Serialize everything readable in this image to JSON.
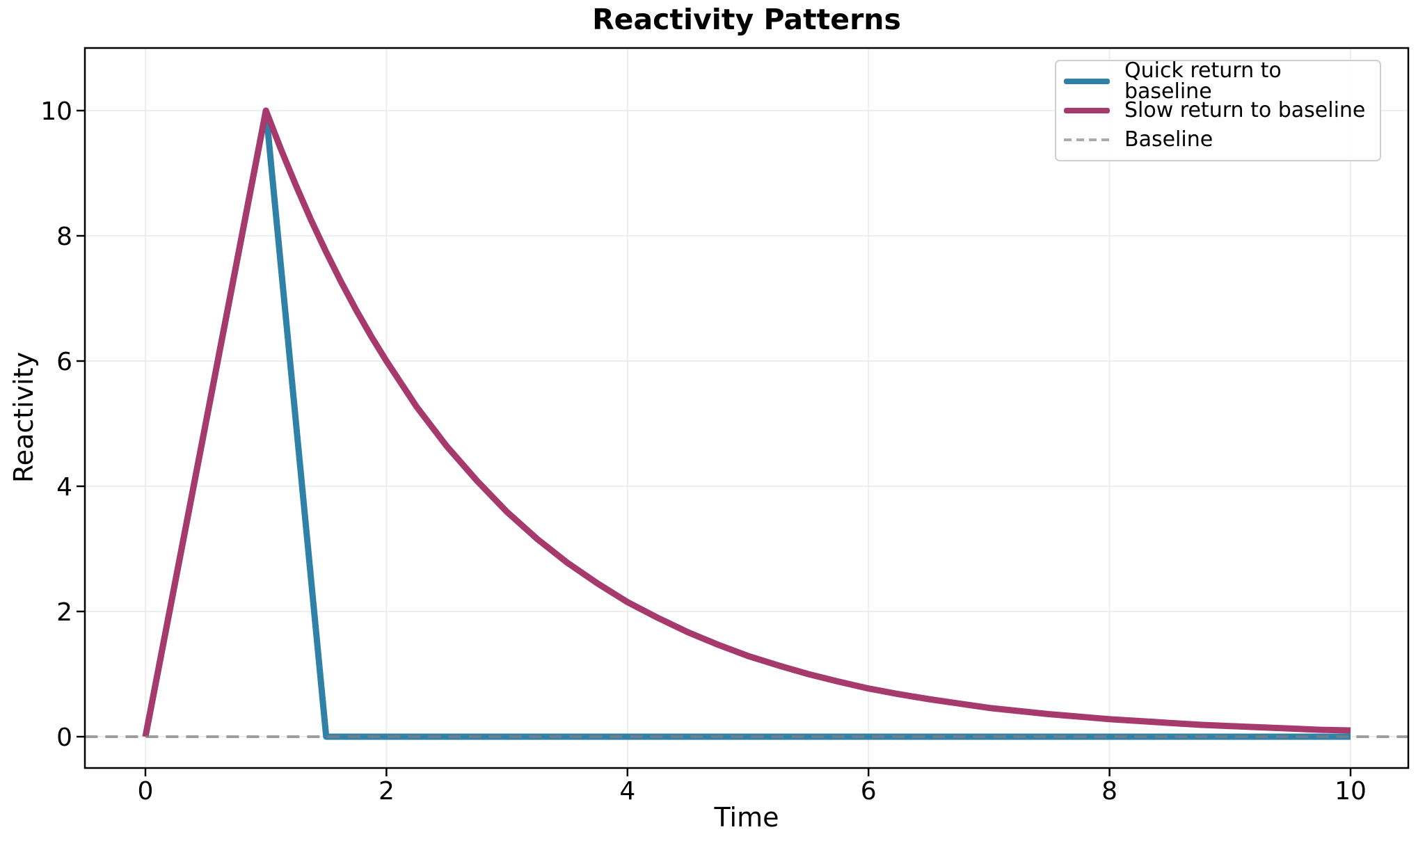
{
  "chart": {
    "title": "Reactivity Patterns",
    "xlabel": "Time",
    "ylabel": "Reactivity"
  },
  "legend": {
    "items": [
      {
        "label": "Quick return to baseline",
        "color": "#2f81a8",
        "dash": "solid"
      },
      {
        "label": "Slow return to baseline",
        "color": "#a63a6d",
        "dash": "solid"
      },
      {
        "label": "Baseline",
        "color": "#ababab",
        "dash": "dashed"
      }
    ]
  },
  "chart_data": {
    "type": "line",
    "title": "Reactivity Patterns",
    "xlabel": "Time",
    "ylabel": "Reactivity",
    "xlim": [
      -0.5,
      10.5
    ],
    "ylim": [
      -0.5,
      11
    ],
    "xticks": [
      0,
      2,
      4,
      6,
      8,
      10
    ],
    "yticks": [
      0,
      2,
      4,
      6,
      8,
      10
    ],
    "grid": true,
    "grid_color": "#ececec",
    "legend_position": "upper right",
    "series": [
      {
        "name": "Quick return to baseline",
        "color": "#2f81a8",
        "style": "solid",
        "width": 9,
        "points": [
          [
            0,
            0
          ],
          [
            1,
            10
          ],
          [
            1.5,
            0
          ],
          [
            10,
            0
          ]
        ]
      },
      {
        "name": "Slow return to baseline",
        "color": "#a63a6d",
        "style": "solid",
        "width": 9,
        "points": [
          [
            0,
            0
          ],
          [
            1,
            10
          ],
          [
            1.125,
            9.38
          ],
          [
            1.25,
            8.8
          ],
          [
            1.375,
            8.25
          ],
          [
            1.5,
            7.74
          ],
          [
            1.625,
            7.26
          ],
          [
            1.75,
            6.81
          ],
          [
            1.875,
            6.39
          ],
          [
            2,
            6.0
          ],
          [
            2.25,
            5.27
          ],
          [
            2.5,
            4.64
          ],
          [
            2.75,
            4.09
          ],
          [
            3,
            3.59
          ],
          [
            3.25,
            3.16
          ],
          [
            3.5,
            2.78
          ],
          [
            3.75,
            2.45
          ],
          [
            4,
            2.15
          ],
          [
            4.25,
            1.9
          ],
          [
            4.5,
            1.67
          ],
          [
            4.75,
            1.47
          ],
          [
            5,
            1.29
          ],
          [
            5.25,
            1.14
          ],
          [
            5.5,
            1.0
          ],
          [
            5.75,
            0.88
          ],
          [
            6,
            0.77
          ],
          [
            6.25,
            0.68
          ],
          [
            6.5,
            0.6
          ],
          [
            6.75,
            0.53
          ],
          [
            7,
            0.46
          ],
          [
            7.25,
            0.41
          ],
          [
            7.5,
            0.36
          ],
          [
            7.75,
            0.32
          ],
          [
            8,
            0.28
          ],
          [
            8.25,
            0.25
          ],
          [
            8.5,
            0.22
          ],
          [
            8.75,
            0.19
          ],
          [
            9,
            0.17
          ],
          [
            9.25,
            0.15
          ],
          [
            9.5,
            0.13
          ],
          [
            9.75,
            0.11
          ],
          [
            10,
            0.1
          ]
        ]
      },
      {
        "name": "Baseline",
        "color": "#808080",
        "style": "dashed",
        "opacity": 0.75,
        "width": 4,
        "points": [
          [
            -0.5,
            0
          ],
          [
            10.5,
            0
          ]
        ]
      }
    ]
  }
}
